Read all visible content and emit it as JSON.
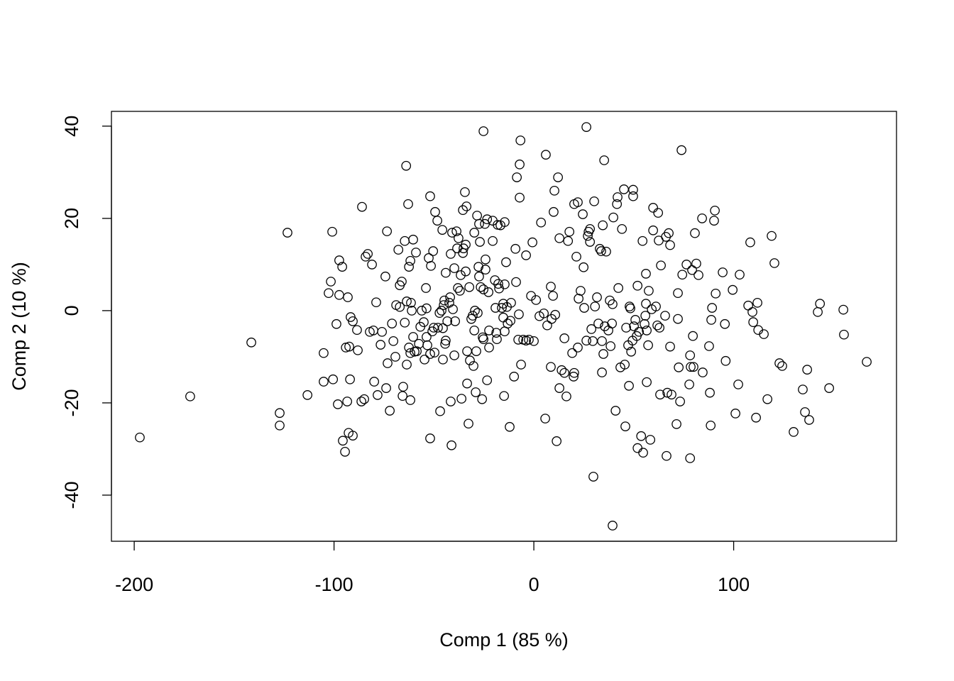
{
  "chart_data": {
    "type": "scatter",
    "title": "",
    "xlabel": "Comp 1 (85 %)",
    "ylabel": "Comp 2 (10 %)",
    "xlim": [
      -211.4,
      181.5
    ],
    "ylim": [
      -50,
      43.2
    ],
    "xticks": [
      -200,
      -100,
      0,
      100
    ],
    "yticks": [
      -40,
      -20,
      0,
      20,
      40
    ],
    "grid": false,
    "marker": "open-circle",
    "marker_color": "#000000",
    "points": [
      [
        -197.2,
        -27.5
      ],
      [
        -172,
        -18.6
      ],
      [
        -141.4,
        -6.9
      ],
      [
        -127.2,
        -22.2
      ],
      [
        -127.2,
        -24.9
      ],
      [
        -123.3,
        16.9
      ],
      [
        -113.3,
        -18.3
      ],
      [
        -105.2,
        -9.2
      ],
      [
        -105.2,
        -15.4
      ],
      [
        -102.7,
        3.8
      ],
      [
        -101.6,
        6.3
      ],
      [
        -100.9,
        17.1
      ],
      [
        -100.5,
        -14.9
      ],
      [
        -98.8,
        -2.9
      ],
      [
        -98.1,
        -20.3
      ],
      [
        -97.4,
        10.9
      ],
      [
        -97.4,
        3.4
      ],
      [
        -95.9,
        9.5
      ],
      [
        -95.6,
        -28.2
      ],
      [
        -94.5,
        -30.6
      ],
      [
        -94.1,
        -8.0
      ],
      [
        -93.4,
        -19.7
      ],
      [
        -93.1,
        2.9
      ],
      [
        -92.7,
        -26.5
      ],
      [
        -92.4,
        -7.8
      ],
      [
        -92.0,
        -14.9
      ],
      [
        -91.7,
        -1.4
      ],
      [
        -90.6,
        -27.1
      ],
      [
        -90.6,
        -2.3
      ],
      [
        -88.5,
        -4.2
      ],
      [
        -88.1,
        -8.6
      ],
      [
        -86.3,
        -19.7
      ],
      [
        -86.0,
        22.5
      ],
      [
        -84.9,
        -19.2
      ],
      [
        -84.2,
        11.7
      ],
      [
        -83.1,
        12.3
      ],
      [
        -82.1,
        -4.6
      ],
      [
        -81.0,
        10.0
      ],
      [
        -80.3,
        -4.3
      ],
      [
        -79.9,
        -15.4
      ],
      [
        -78.9,
        1.8
      ],
      [
        -78.2,
        -18.3
      ],
      [
        -76.7,
        -7.4
      ],
      [
        -76.0,
        -4.6
      ],
      [
        -74.3,
        7.4
      ],
      [
        -73.9,
        -16.8
      ],
      [
        -73.5,
        17.2
      ],
      [
        -73.2,
        -11.4
      ],
      [
        -72.1,
        -21.7
      ],
      [
        -71.0,
        -2.8
      ],
      [
        -70.3,
        -6.6
      ],
      [
        -69.3,
        -10.0
      ],
      [
        -68.9,
        1.2
      ],
      [
        -67.8,
        13.2
      ],
      [
        -67.1,
        0.8
      ],
      [
        -67.1,
        5.5
      ],
      [
        -66.1,
        6.3
      ],
      [
        -65.7,
        -18.5
      ],
      [
        -65.4,
        -16.5
      ],
      [
        -64.6,
        15.1
      ],
      [
        -64.6,
        -2.6
      ],
      [
        -63.9,
        31.4
      ],
      [
        -63.6,
        -11.7
      ],
      [
        -63.6,
        2.0
      ],
      [
        -62.9,
        23.1
      ],
      [
        -62.5,
        -8.0
      ],
      [
        -62.5,
        9.5
      ],
      [
        -61.8,
        10.8
      ],
      [
        -61.8,
        -9.2
      ],
      [
        -61.8,
        -19.4
      ],
      [
        -61.5,
        1.7
      ],
      [
        -61.1,
        0
      ],
      [
        -60.4,
        15.4
      ],
      [
        -60.4,
        -5.7
      ],
      [
        -59.7,
        -8.9
      ],
      [
        -59.0,
        12.6
      ],
      [
        -58.6,
        -8.8
      ],
      [
        -57.5,
        -7.2
      ],
      [
        -56.8,
        -3.5
      ],
      [
        -56.1,
        0
      ],
      [
        -55.1,
        -2.5
      ],
      [
        -54.7,
        -10.6
      ],
      [
        -54.0,
        4.9
      ],
      [
        -53.7,
        -5.7
      ],
      [
        -53.7,
        0.5
      ],
      [
        -53.3,
        -7.5
      ],
      [
        -52.6,
        11.4
      ],
      [
        -51.9,
        24.8
      ],
      [
        -51.9,
        -9.4
      ],
      [
        -51.9,
        -27.7
      ],
      [
        -51.5,
        9.7
      ],
      [
        -50.8,
        -4.5
      ],
      [
        -50.4,
        12.9
      ],
      [
        -50.1,
        -3.7
      ],
      [
        -49.7,
        -9.1
      ],
      [
        -49.4,
        21.4
      ],
      [
        -48.3,
        19.5
      ],
      [
        -48.0,
        -3.7
      ],
      [
        -47.2,
        -0.5
      ],
      [
        -46.9,
        -21.8
      ],
      [
        -46.2,
        0
      ],
      [
        -45.8,
        17.5
      ],
      [
        -45.5,
        -3.8
      ],
      [
        -45.5,
        -10.6
      ],
      [
        -45.1,
        1.2
      ],
      [
        -44.8,
        2.2
      ],
      [
        -44.4,
        -7.2
      ],
      [
        -44.1,
        8.2
      ],
      [
        -44.1,
        -6.5
      ],
      [
        -43.3,
        -2.3
      ],
      [
        -42.3,
        1.7
      ],
      [
        -41.9,
        2.9
      ],
      [
        -41.6,
        -19.7
      ],
      [
        -41.6,
        12.3
      ],
      [
        -41.2,
        -29.2
      ],
      [
        -40.9,
        16.9
      ],
      [
        -40.5,
        0.3
      ],
      [
        -39.8,
        9.2
      ],
      [
        -39.8,
        -9.7
      ],
      [
        -39.4,
        -2.3
      ],
      [
        -38.7,
        17.2
      ],
      [
        -38.4,
        13.5
      ],
      [
        -38.0,
        4.9
      ],
      [
        -37.7,
        15.7
      ],
      [
        -37.0,
        4.3
      ],
      [
        -36.6,
        7.7
      ],
      [
        -36.2,
        -19.1
      ],
      [
        -35.5,
        21.8
      ],
      [
        -35.5,
        12.5
      ],
      [
        -35.2,
        13.5
      ],
      [
        -34.5,
        25.7
      ],
      [
        -34.1,
        14.3
      ],
      [
        -34.1,
        8.5
      ],
      [
        -33.7,
        22.6
      ],
      [
        -33.4,
        -15.8
      ],
      [
        -33.4,
        -8.8
      ],
      [
        -32.7,
        -24.5
      ],
      [
        -32.3,
        5.1
      ],
      [
        -32.0,
        -10.8
      ],
      [
        -31.3,
        -1.8
      ],
      [
        -30.6,
        -1.1
      ],
      [
        -30.2,
        -12.0
      ],
      [
        -29.8,
        16.9
      ],
      [
        -29.8,
        -4.3
      ],
      [
        -29.5,
        0
      ],
      [
        -29.1,
        -17.7
      ],
      [
        -28.8,
        -8.8
      ],
      [
        -28.4,
        20.6
      ],
      [
        -28.1,
        -0.5
      ],
      [
        -27.7,
        9.5
      ],
      [
        -27.4,
        7.4
      ],
      [
        -27.4,
        18.8
      ],
      [
        -27.0,
        14.9
      ],
      [
        -26.6,
        5.1
      ],
      [
        -25.9,
        -19.2
      ],
      [
        -25.6,
        -5.8
      ],
      [
        -25.2,
        -6.2
      ],
      [
        -25.2,
        38.9
      ],
      [
        -25.2,
        4.6
      ],
      [
        -24.5,
        18.8
      ],
      [
        -24.2,
        11.1
      ],
      [
        -24.2,
        8.9
      ],
      [
        -23.4,
        19.8
      ],
      [
        -23.4,
        -15.1
      ],
      [
        -22.7,
        4.0
      ],
      [
        -22.4,
        -4.3
      ],
      [
        -22.4,
        -8.0
      ],
      [
        -20.6,
        19.5
      ],
      [
        -20.6,
        15.1
      ],
      [
        -19.5,
        6.6
      ],
      [
        -19.2,
        0.6
      ],
      [
        -18.8,
        -4.8
      ],
      [
        -18.5,
        -6.2
      ],
      [
        -18.1,
        18.6
      ],
      [
        -17.8,
        5.8
      ],
      [
        -17.4,
        4.8
      ],
      [
        -16.7,
        18.5
      ],
      [
        -16.0,
        0.6
      ],
      [
        -15.3,
        1.5
      ],
      [
        -15.3,
        -1.5
      ],
      [
        -14.9,
        -18.5
      ],
      [
        -14.6,
        19.2
      ],
      [
        -14.6,
        5.7
      ],
      [
        -14.6,
        -4.5
      ],
      [
        -13.9,
        10.5
      ],
      [
        -13.5,
        0.8
      ],
      [
        -13.1,
        -2.8
      ],
      [
        -12.1,
        -25.2
      ],
      [
        -11.7,
        -2.2
      ],
      [
        -11.4,
        1.7
      ],
      [
        -9.9,
        -14.3
      ],
      [
        -9.2,
        13.4
      ],
      [
        -8.9,
        6.2
      ],
      [
        -8.5,
        28.9
      ],
      [
        -7.8,
        -6.3
      ],
      [
        -7.5,
        -0.8
      ],
      [
        -7.1,
        31.7
      ],
      [
        -7.1,
        24.5
      ],
      [
        -6.7,
        36.9
      ],
      [
        -6.4,
        -11.7
      ],
      [
        -5.3,
        -6.3
      ],
      [
        -3.9,
        12.0
      ],
      [
        -3.9,
        -6.5
      ],
      [
        -2.5,
        -6.3
      ],
      [
        -1.4,
        3.2
      ],
      [
        -0.7,
        14.8
      ],
      [
        0,
        -6.6
      ],
      [
        1.1,
        2.3
      ],
      [
        2.8,
        -1.2
      ],
      [
        3.6,
        19.1
      ],
      [
        5.0,
        -0.6
      ],
      [
        5.7,
        -23.4
      ],
      [
        6.0,
        33.8
      ],
      [
        6.7,
        -3.2
      ],
      [
        8.5,
        5.2
      ],
      [
        8.5,
        -12.2
      ],
      [
        8.9,
        -1.8
      ],
      [
        9.6,
        3.2
      ],
      [
        9.9,
        21.4
      ],
      [
        10.3,
        26.0
      ],
      [
        10.7,
        -0.9
      ],
      [
        11.4,
        -28.3
      ],
      [
        12.1,
        28.9
      ],
      [
        12.8,
        15.7
      ],
      [
        12.8,
        -16.8
      ],
      [
        13.9,
        -12.9
      ],
      [
        15.3,
        -6.0
      ],
      [
        15.3,
        -13.5
      ],
      [
        16.3,
        -18.6
      ],
      [
        17.1,
        15.1
      ],
      [
        17.8,
        17.1
      ],
      [
        19.2,
        -9.2
      ],
      [
        19.9,
        -14.3
      ],
      [
        20.2,
        23.1
      ],
      [
        20.2,
        -13.5
      ],
      [
        21.3,
        11.7
      ],
      [
        22.0,
        23.5
      ],
      [
        22.0,
        -8.0
      ],
      [
        22.4,
        2.6
      ],
      [
        23.4,
        4.3
      ],
      [
        24.5,
        20.9
      ],
      [
        24.9,
        9.4
      ],
      [
        25.2,
        0.6
      ],
      [
        26.3,
        -6.5
      ],
      [
        26.3,
        39.8
      ],
      [
        27.0,
        16.2
      ],
      [
        27.4,
        17.1
      ],
      [
        28.1,
        17.7
      ],
      [
        28.1,
        14.9
      ],
      [
        28.8,
        -4.0
      ],
      [
        29.5,
        -6.6
      ],
      [
        29.8,
        -36.0
      ],
      [
        30.2,
        23.7
      ],
      [
        30.6,
        0.9
      ],
      [
        31.6,
        2.9
      ],
      [
        32.3,
        -2.8
      ],
      [
        33.0,
        13.4
      ],
      [
        33.7,
        12.9
      ],
      [
        34.1,
        -6.6
      ],
      [
        34.1,
        -13.4
      ],
      [
        34.5,
        18.5
      ],
      [
        34.8,
        -9.4
      ],
      [
        35.2,
        32.6
      ],
      [
        35.5,
        -3.4
      ],
      [
        36.2,
        12.8
      ],
      [
        37.3,
        -4.3
      ],
      [
        38.0,
        2.2
      ],
      [
        38.4,
        -7.7
      ],
      [
        39.1,
        -2.8
      ],
      [
        39.4,
        1.4
      ],
      [
        39.4,
        -46.6
      ],
      [
        39.8,
        20.2
      ],
      [
        40.9,
        -21.7
      ],
      [
        41.6,
        23.1
      ],
      [
        41.9,
        24.6
      ],
      [
        42.3,
        4.9
      ],
      [
        43.3,
        -12.3
      ],
      [
        44.1,
        17.7
      ],
      [
        45.1,
        26.3
      ],
      [
        45.5,
        -11.7
      ],
      [
        45.8,
        -25.1
      ],
      [
        46.2,
        -3.7
      ],
      [
        47.2,
        -7.5
      ],
      [
        47.6,
        -16.3
      ],
      [
        47.9,
        0.9
      ],
      [
        48.3,
        0.5
      ],
      [
        48.7,
        -8.9
      ],
      [
        49.4,
        -6.5
      ],
      [
        49.7,
        26.2
      ],
      [
        49.7,
        24.8
      ],
      [
        50.1,
        -3.4
      ],
      [
        50.8,
        -2.0
      ],
      [
        51.5,
        -5.5
      ],
      [
        51.9,
        -29.8
      ],
      [
        51.9,
        5.4
      ],
      [
        52.6,
        -4.6
      ],
      [
        53.7,
        -27.2
      ],
      [
        54.4,
        15.1
      ],
      [
        54.7,
        -30.8
      ],
      [
        55.4,
        -2.9
      ],
      [
        55.8,
        -1.1
      ],
      [
        56.1,
        1.5
      ],
      [
        56.1,
        8.0
      ],
      [
        56.5,
        -15.5
      ],
      [
        56.5,
        -4.3
      ],
      [
        57.2,
        -7.5
      ],
      [
        57.5,
        4.3
      ],
      [
        58.3,
        -28.0
      ],
      [
        59.0,
        0.3
      ],
      [
        59.7,
        22.3
      ],
      [
        59.7,
        17.4
      ],
      [
        61.1,
        0.9
      ],
      [
        61.8,
        -3.2
      ],
      [
        62.2,
        21.2
      ],
      [
        62.5,
        15.2
      ],
      [
        62.9,
        -3.7
      ],
      [
        63.2,
        -18.2
      ],
      [
        63.6,
        9.8
      ],
      [
        65.7,
        -1.1
      ],
      [
        66.1,
        16.0
      ],
      [
        66.4,
        -31.5
      ],
      [
        66.8,
        -17.8
      ],
      [
        67.5,
        16.8
      ],
      [
        68.2,
        14.2
      ],
      [
        68.2,
        -7.8
      ],
      [
        68.9,
        -18.2
      ],
      [
        71.4,
        -24.6
      ],
      [
        72.1,
        -1.8
      ],
      [
        72.1,
        3.8
      ],
      [
        72.5,
        -12.3
      ],
      [
        73.2,
        -19.7
      ],
      [
        73.9,
        34.8
      ],
      [
        74.3,
        7.8
      ],
      [
        76.4,
        10.0
      ],
      [
        77.8,
        -16.0
      ],
      [
        78.2,
        -9.7
      ],
      [
        78.2,
        -32.0
      ],
      [
        78.5,
        -12.2
      ],
      [
        79.2,
        8.8
      ],
      [
        79.6,
        -5.5
      ],
      [
        79.9,
        -12.2
      ],
      [
        80.6,
        16.8
      ],
      [
        81.3,
        10.2
      ],
      [
        82.4,
        7.7
      ],
      [
        84.2,
        20.0
      ],
      [
        84.5,
        -13.4
      ],
      [
        87.7,
        -7.7
      ],
      [
        88.1,
        -17.8
      ],
      [
        88.5,
        -24.9
      ],
      [
        88.8,
        -2.0
      ],
      [
        89.2,
        0.6
      ],
      [
        90.2,
        19.5
      ],
      [
        90.6,
        21.7
      ],
      [
        91.0,
        3.7
      ],
      [
        94.5,
        8.3
      ],
      [
        95.6,
        -2.9
      ],
      [
        96.0,
        -10.9
      ],
      [
        99.5,
        4.5
      ],
      [
        100.9,
        -22.3
      ],
      [
        102.3,
        -16.0
      ],
      [
        103.0,
        7.8
      ],
      [
        107.3,
        1.1
      ],
      [
        108.3,
        14.8
      ],
      [
        109.4,
        -0.3
      ],
      [
        109.8,
        -2.5
      ],
      [
        111.2,
        -23.2
      ],
      [
        111.9,
        1.7
      ],
      [
        112.3,
        -4.2
      ],
      [
        115.1,
        -5.1
      ],
      [
        116.9,
        -19.2
      ],
      [
        119.0,
        16.2
      ],
      [
        120.4,
        10.3
      ],
      [
        122.9,
        -11.4
      ],
      [
        124.3,
        -12.0
      ],
      [
        130.0,
        -26.3
      ],
      [
        134.6,
        -17.1
      ],
      [
        135.7,
        -22.0
      ],
      [
        136.8,
        -12.8
      ],
      [
        137.8,
        -23.7
      ],
      [
        142.1,
        -0.3
      ],
      [
        143.2,
        1.5
      ],
      [
        147.8,
        -16.8
      ],
      [
        154.9,
        0.2
      ],
      [
        155.2,
        -5.2
      ],
      [
        166.6,
        -11.1
      ]
    ]
  }
}
